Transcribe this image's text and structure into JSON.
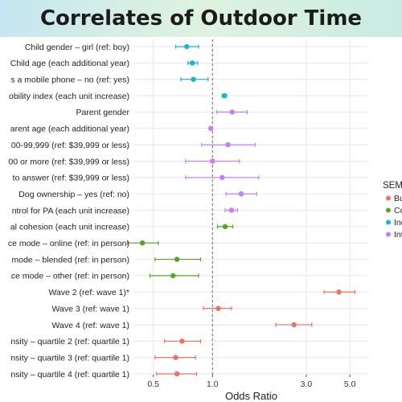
{
  "title": "Correlates of Outdoor Time",
  "colors": {
    "red": "#ef6f61",
    "green": "#57a51f",
    "teal": "#1bb7c5",
    "purple": "#c77cff"
  },
  "chart_data": {
    "type": "scatter",
    "subtype": "forest-plot",
    "xlabel": "Odds Ratio",
    "x_scale": "log",
    "xlim": [
      0.4,
      6.2
    ],
    "xticks": [
      0.5,
      1.0,
      3.0,
      5.0
    ],
    "xtick_labels": [
      "0.5",
      "1.0",
      "3.0",
      "5.0"
    ],
    "reference_line": 1.0,
    "grid": true,
    "legend": {
      "title": "SEM_",
      "position": "right",
      "entries": [
        {
          "label": "Buil",
          "color": "red"
        },
        {
          "label": "Cor",
          "color": "green"
        },
        {
          "label": "Indi",
          "color": "teal"
        },
        {
          "label": "Inte",
          "color": "purple"
        }
      ]
    },
    "rows": [
      {
        "label": "Child gender – girl (ref: boy)",
        "or": 0.74,
        "lo": 0.65,
        "hi": 0.85,
        "color": "teal"
      },
      {
        "label": "Child age (each additional year)",
        "or": 0.79,
        "lo": 0.75,
        "hi": 0.84,
        "color": "teal"
      },
      {
        "label": "s a mobile phone – no (ref: yes)",
        "or": 0.8,
        "lo": 0.69,
        "hi": 0.95,
        "color": "teal"
      },
      {
        "label": "obility index (each unit increase)",
        "or": 1.15,
        "lo": 1.12,
        "hi": 1.18,
        "color": "teal"
      },
      {
        "label": "Parent gender",
        "or": 1.26,
        "lo": 1.05,
        "hi": 1.5,
        "color": "purple"
      },
      {
        "label": "arent age (each additional year)",
        "or": 0.98,
        "lo": 0.97,
        "hi": 0.99,
        "color": "purple"
      },
      {
        "label": "00-99,999 (ref: $39,999 or less)",
        "or": 1.2,
        "lo": 0.88,
        "hi": 1.65,
        "color": "purple"
      },
      {
        "label": "00 or more (ref: $39,999 or less)",
        "or": 1.0,
        "lo": 0.73,
        "hi": 1.37,
        "color": "purple"
      },
      {
        "label": "to answer (ref: $39,999 or less)",
        "or": 1.12,
        "lo": 0.73,
        "hi": 1.72,
        "color": "purple"
      },
      {
        "label": "Dog ownership – yes (ref: no)",
        "or": 1.4,
        "lo": 1.17,
        "hi": 1.68,
        "color": "purple"
      },
      {
        "label": "ntrol for PA (each unit increase)",
        "or": 1.25,
        "lo": 1.16,
        "hi": 1.34,
        "color": "purple"
      },
      {
        "label": "al cohesion (each unit increase)",
        "or": 1.16,
        "lo": 1.06,
        "hi": 1.27,
        "color": "green"
      },
      {
        "label": "ce mode – online (ref: in person)",
        "or": 0.44,
        "lo": 0.37,
        "hi": 0.53,
        "color": "green"
      },
      {
        "label": "mode – blended (ref: in person)",
        "or": 0.66,
        "lo": 0.51,
        "hi": 0.87,
        "color": "green"
      },
      {
        "label": "ce mode – other (ref: in person)",
        "or": 0.63,
        "lo": 0.48,
        "hi": 0.85,
        "color": "green"
      },
      {
        "label": "Wave 2 (ref: wave 1)*",
        "or": 4.4,
        "lo": 3.7,
        "hi": 5.3,
        "color": "red"
      },
      {
        "label": "Wave 3 (ref: wave 1)",
        "or": 1.07,
        "lo": 0.9,
        "hi": 1.25,
        "color": "red"
      },
      {
        "label": "Wave 4 (ref: wave 1)",
        "or": 2.6,
        "lo": 2.1,
        "hi": 3.2,
        "color": "red"
      },
      {
        "label": "nsity – quartile 2 (ref: quartile 1)",
        "or": 0.7,
        "lo": 0.57,
        "hi": 0.87,
        "color": "red"
      },
      {
        "label": "nsity – quartile 3 (ref: quartile 1)",
        "or": 0.65,
        "lo": 0.51,
        "hi": 0.82,
        "color": "red"
      },
      {
        "label": "nsity – quartile 4 (ref: quartile 1)",
        "or": 0.66,
        "lo": 0.52,
        "hi": 0.83,
        "color": "red"
      }
    ]
  }
}
